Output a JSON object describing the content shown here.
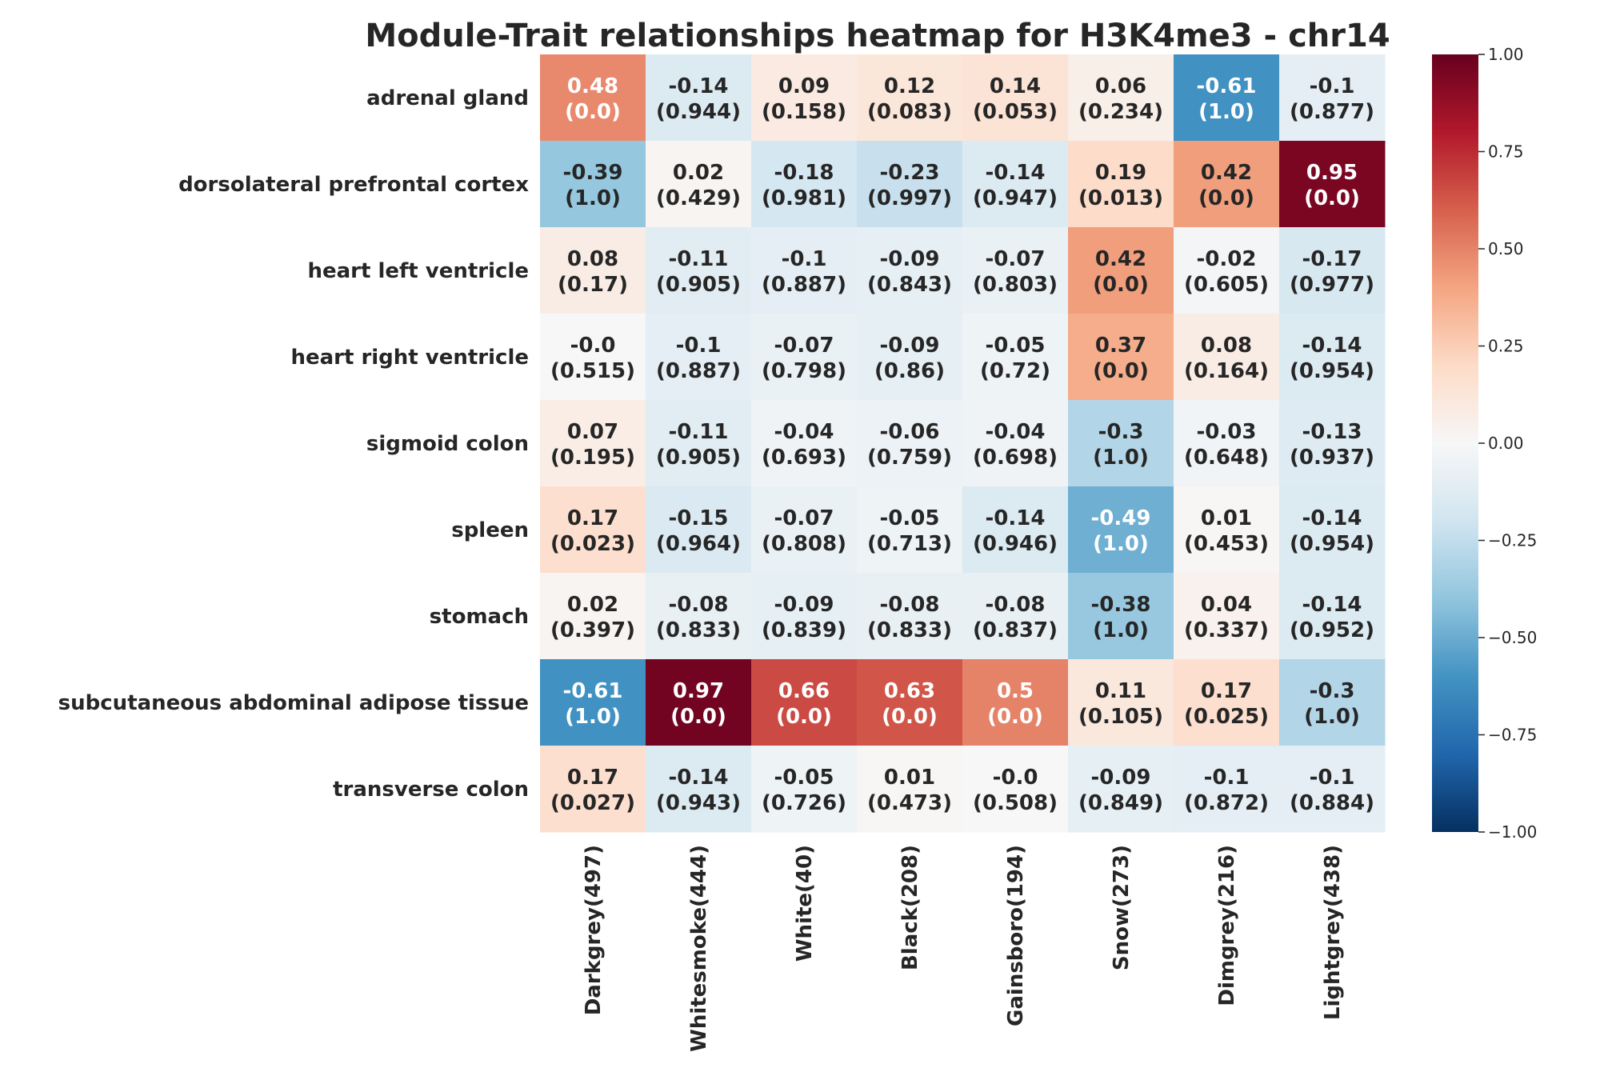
{
  "chart_data": {
    "type": "heatmap",
    "title": "Module-Trait relationships heatmap for H3K4me3 - chr14",
    "rows": [
      "adrenal gland",
      "dorsolateral prefrontal cortex",
      "heart left ventricle",
      "heart right ventricle",
      "sigmoid colon",
      "spleen",
      "stomach",
      "subcutaneous abdominal adipose tissue",
      "transverse colon"
    ],
    "columns": [
      "Darkgrey(497)",
      "Whitesmoke(444)",
      "White(40)",
      "Black(208)",
      "Gainsboro(194)",
      "Snow(273)",
      "Dimgrey(216)",
      "Lightgrey(438)"
    ],
    "values": [
      [
        0.48,
        -0.14,
        0.09,
        0.12,
        0.14,
        0.06,
        -0.61,
        -0.1
      ],
      [
        -0.39,
        0.02,
        -0.18,
        -0.23,
        -0.14,
        0.19,
        0.42,
        0.95
      ],
      [
        0.08,
        -0.11,
        -0.1,
        -0.09,
        -0.07,
        0.42,
        -0.02,
        -0.17
      ],
      [
        -0.0,
        -0.1,
        -0.07,
        -0.09,
        -0.05,
        0.37,
        0.08,
        -0.14
      ],
      [
        0.07,
        -0.11,
        -0.04,
        -0.06,
        -0.04,
        -0.3,
        -0.03,
        -0.13
      ],
      [
        0.17,
        -0.15,
        -0.07,
        -0.05,
        -0.14,
        -0.49,
        0.01,
        -0.14
      ],
      [
        0.02,
        -0.08,
        -0.09,
        -0.08,
        -0.08,
        -0.38,
        0.04,
        -0.14
      ],
      [
        -0.61,
        0.97,
        0.66,
        0.63,
        0.5,
        0.11,
        0.17,
        -0.3
      ],
      [
        0.17,
        -0.14,
        -0.05,
        0.01,
        -0.0,
        -0.09,
        -0.1,
        -0.1
      ]
    ],
    "value_labels": [
      [
        "0.48",
        "-0.14",
        "0.09",
        "0.12",
        "0.14",
        "0.06",
        "-0.61",
        "-0.1"
      ],
      [
        "-0.39",
        "0.02",
        "-0.18",
        "-0.23",
        "-0.14",
        "0.19",
        "0.42",
        "0.95"
      ],
      [
        "0.08",
        "-0.11",
        "-0.1",
        "-0.09",
        "-0.07",
        "0.42",
        "-0.02",
        "-0.17"
      ],
      [
        "-0.0",
        "-0.1",
        "-0.07",
        "-0.09",
        "-0.05",
        "0.37",
        "0.08",
        "-0.14"
      ],
      [
        "0.07",
        "-0.11",
        "-0.04",
        "-0.06",
        "-0.04",
        "-0.3",
        "-0.03",
        "-0.13"
      ],
      [
        "0.17",
        "-0.15",
        "-0.07",
        "-0.05",
        "-0.14",
        "-0.49",
        "0.01",
        "-0.14"
      ],
      [
        "0.02",
        "-0.08",
        "-0.09",
        "-0.08",
        "-0.08",
        "-0.38",
        "0.04",
        "-0.14"
      ],
      [
        "-0.61",
        "0.97",
        "0.66",
        "0.63",
        "0.5",
        "0.11",
        "0.17",
        "-0.3"
      ],
      [
        "0.17",
        "-0.14",
        "-0.05",
        "0.01",
        "-0.0",
        "-0.09",
        "-0.1",
        "-0.1"
      ]
    ],
    "p_values": [
      [
        "(0.0)",
        "(0.944)",
        "(0.158)",
        "(0.083)",
        "(0.053)",
        "(0.234)",
        "(1.0)",
        "(0.877)"
      ],
      [
        "(1.0)",
        "(0.429)",
        "(0.981)",
        "(0.997)",
        "(0.947)",
        "(0.013)",
        "(0.0)",
        "(0.0)"
      ],
      [
        "(0.17)",
        "(0.905)",
        "(0.887)",
        "(0.843)",
        "(0.803)",
        "(0.0)",
        "(0.605)",
        "(0.977)"
      ],
      [
        "(0.515)",
        "(0.887)",
        "(0.798)",
        "(0.86)",
        "(0.72)",
        "(0.0)",
        "(0.164)",
        "(0.954)"
      ],
      [
        "(0.195)",
        "(0.905)",
        "(0.693)",
        "(0.759)",
        "(0.698)",
        "(1.0)",
        "(0.648)",
        "(0.937)"
      ],
      [
        "(0.023)",
        "(0.964)",
        "(0.808)",
        "(0.713)",
        "(0.946)",
        "(1.0)",
        "(0.453)",
        "(0.954)"
      ],
      [
        "(0.397)",
        "(0.833)",
        "(0.839)",
        "(0.833)",
        "(0.837)",
        "(1.0)",
        "(0.337)",
        "(0.952)"
      ],
      [
        "(1.0)",
        "(0.0)",
        "(0.0)",
        "(0.0)",
        "(0.0)",
        "(0.105)",
        "(0.025)",
        "(1.0)"
      ],
      [
        "(0.027)",
        "(0.943)",
        "(0.726)",
        "(0.473)",
        "(0.508)",
        "(0.849)",
        "(0.872)",
        "(0.884)"
      ]
    ],
    "colorbar": {
      "range": [
        -1.0,
        1.0
      ],
      "colormap": "RdBu_r",
      "ticks": [
        1.0,
        0.75,
        0.5,
        0.25,
        0.0,
        -0.25,
        -0.5,
        -0.75,
        -1.0
      ],
      "tick_labels": [
        "1.00",
        "0.75",
        "0.50",
        "0.25",
        "0.00",
        "−0.25",
        "−0.50",
        "−0.75",
        "−1.00"
      ]
    },
    "colors": {
      "text_dark": "#262626",
      "text_light": "#ffffff",
      "scale": [
        "#053061",
        "#2166ac",
        "#4393c3",
        "#92c5de",
        "#d1e5f0",
        "#f7f7f7",
        "#fddbc7",
        "#f4a582",
        "#d6604d",
        "#b2182b",
        "#67001f"
      ]
    }
  }
}
